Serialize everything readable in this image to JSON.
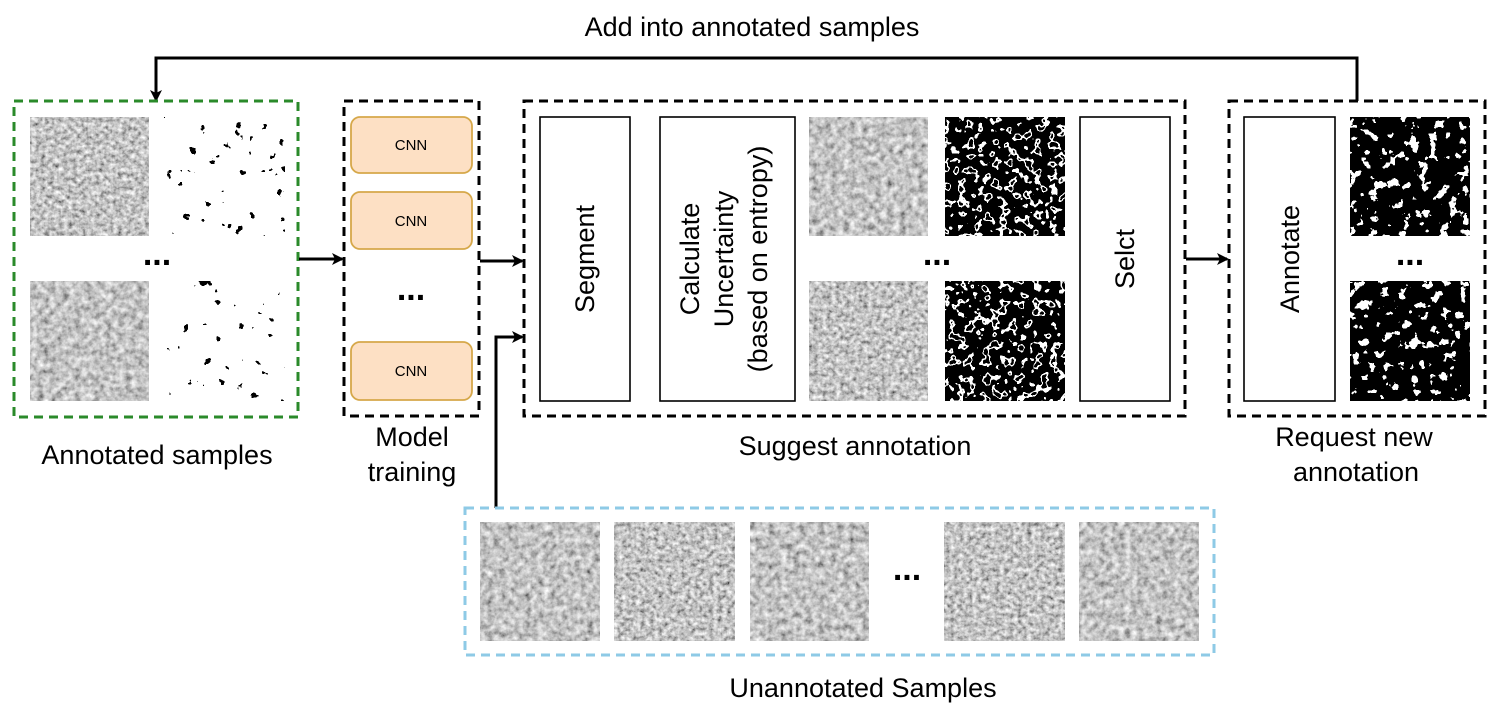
{
  "top_label": "Add into annotated samples",
  "annotated": {
    "caption": "Annotated samples",
    "ellipsis": "...",
    "border_color": "#2a8a2a"
  },
  "training": {
    "caption_line1": "Model",
    "caption_line2": "training",
    "cnn_labels": [
      "CNN",
      "CNN",
      "CNN"
    ],
    "ellipsis": "...",
    "cnn_fill": "#fde0c4",
    "cnn_stroke": "#d6a84a"
  },
  "suggest": {
    "caption": "Suggest annotation",
    "segment_label": "Segment",
    "uncertainty_lines": [
      "Calculate",
      "Uncertainty",
      "(based on entropy)"
    ],
    "select_label": "Selct",
    "ellipsis": "..."
  },
  "request": {
    "caption_line1": "Request new",
    "caption_line2": "annotation",
    "annotate_label": "Annotate",
    "ellipsis": "..."
  },
  "unannotated": {
    "caption": "Unannotated Samples",
    "ellipsis": "...",
    "border_color": "#8ecae6"
  }
}
